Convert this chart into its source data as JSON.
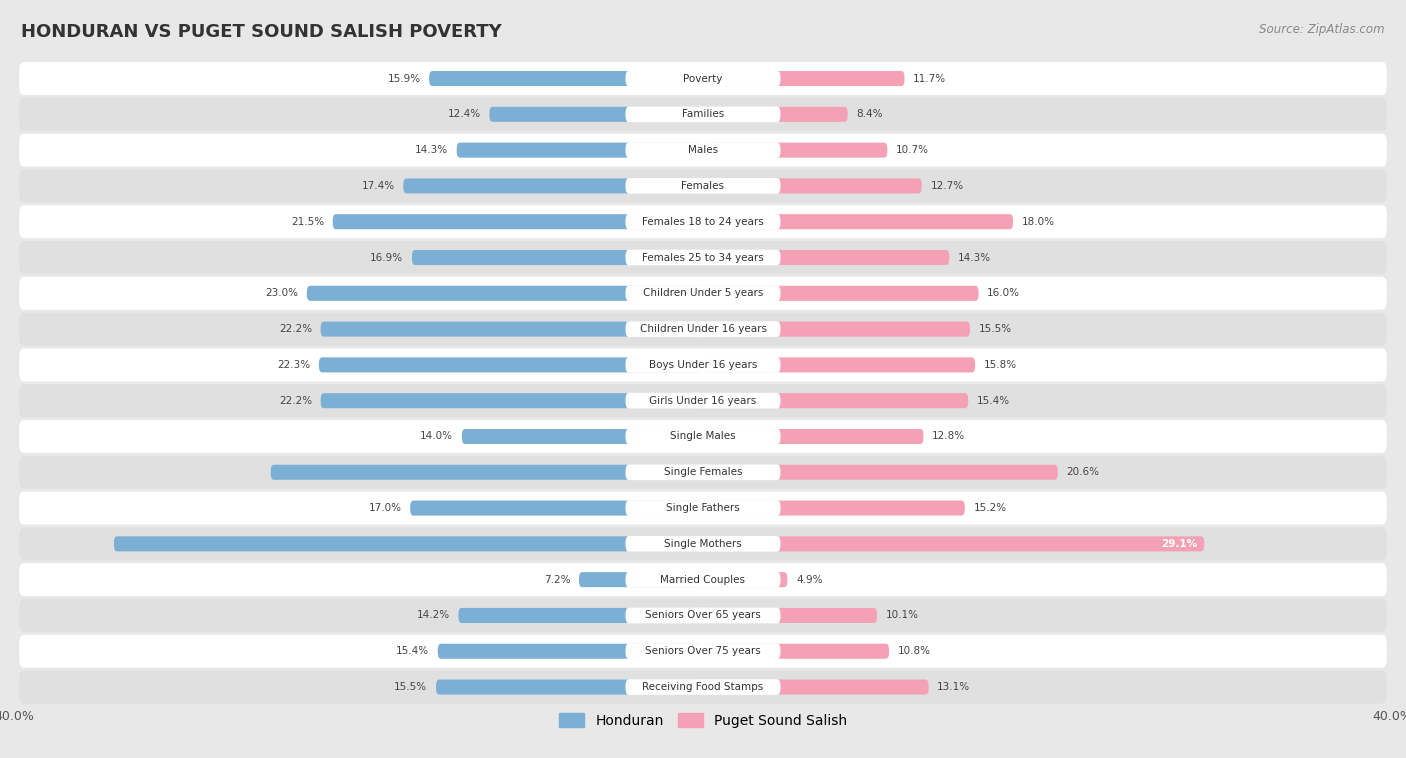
{
  "title": "HONDURAN VS PUGET SOUND SALISH POVERTY",
  "source": "Source: ZipAtlas.com",
  "categories": [
    "Poverty",
    "Families",
    "Males",
    "Females",
    "Females 18 to 24 years",
    "Females 25 to 34 years",
    "Children Under 5 years",
    "Children Under 16 years",
    "Boys Under 16 years",
    "Girls Under 16 years",
    "Single Males",
    "Single Females",
    "Single Fathers",
    "Single Mothers",
    "Married Couples",
    "Seniors Over 65 years",
    "Seniors Over 75 years",
    "Receiving Food Stamps"
  ],
  "honduran": [
    15.9,
    12.4,
    14.3,
    17.4,
    21.5,
    16.9,
    23.0,
    22.2,
    22.3,
    22.2,
    14.0,
    25.1,
    17.0,
    34.2,
    7.2,
    14.2,
    15.4,
    15.5
  ],
  "puget_sound": [
    11.7,
    8.4,
    10.7,
    12.7,
    18.0,
    14.3,
    16.0,
    15.5,
    15.8,
    15.4,
    12.8,
    20.6,
    15.2,
    29.1,
    4.9,
    10.1,
    10.8,
    13.1
  ],
  "honduran_color": "#7bafd4",
  "puget_sound_color": "#f4a0b5",
  "background_color": "#e8e8e8",
  "row_bg_white": "#ffffff",
  "row_bg_gray": "#e0e0e0",
  "axis_limit": 40.0,
  "legend_honduran": "Honduran",
  "legend_puget": "Puget Sound Salish"
}
